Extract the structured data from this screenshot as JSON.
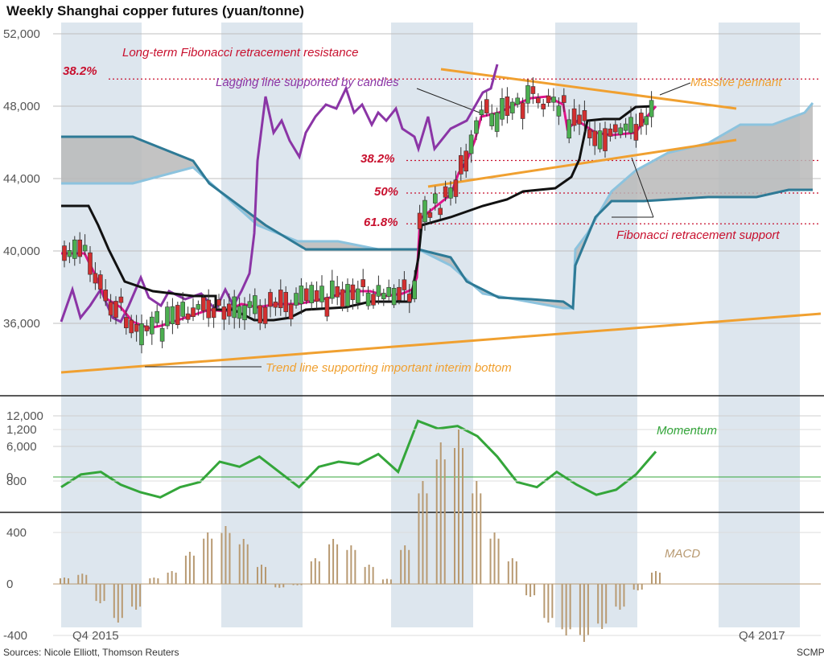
{
  "title": "Weekly Shanghai copper futures (yuan/tonne)",
  "source": "Sources: Nicole Elliott, Thomson Reuters",
  "brand": "SCMP",
  "x_labels": [
    "Q4 2015",
    "Q4 2017"
  ],
  "colors": {
    "lagging": "#8b35a6",
    "pink": "#e0148a",
    "black": "#111111",
    "teal": "#2e7a96",
    "lightblue": "#8cc3de",
    "cloud": "#b9b9b9",
    "orange": "#f0a030",
    "fib": "#c8102e",
    "momentum": "#34a63a",
    "macd": "#b89a72",
    "candle_up": "#4caf50",
    "candle_down": "#d32f2f",
    "band": "#dde6ee"
  },
  "chart_data": [
    {
      "type": "candlestick",
      "title": "Weekly Shanghai copper futures (yuan/tonne)",
      "ylim": [
        33000,
        52000
      ],
      "y_ticks": [
        52000,
        48000,
        44000,
        40000,
        36000
      ],
      "x_range": [
        "Q3 2015",
        "Q4 2017"
      ],
      "close_series": [
        [
          "2015-08",
          39500
        ],
        [
          "2015-09",
          38000
        ],
        [
          "2015-10",
          37000
        ],
        [
          "2015-11",
          35000
        ],
        [
          "2015-12",
          35800
        ],
        [
          "2016-01",
          35500
        ],
        [
          "2016-02",
          36500
        ],
        [
          "2016-03",
          37200
        ],
        [
          "2016-04",
          37000
        ],
        [
          "2016-05",
          36000
        ],
        [
          "2016-06",
          36000
        ],
        [
          "2016-07",
          37500
        ],
        [
          "2016-08",
          36800
        ],
        [
          "2016-09",
          36000
        ],
        [
          "2016-10",
          36500
        ],
        [
          "2016-11",
          38500
        ],
        [
          "2016-12",
          37000
        ],
        [
          "2017-01",
          46000
        ],
        [
          "2017-02",
          47000
        ],
        [
          "2017-03",
          46000
        ],
        [
          "2017-04",
          45500
        ],
        [
          "2017-05",
          46000
        ],
        [
          "2017-06",
          46500
        ],
        [
          "2017-07",
          48000
        ],
        [
          "2017-08",
          47500
        ],
        [
          "2017-09",
          46000
        ],
        [
          "2017-10",
          47000
        ],
        [
          "2017-11",
          49500
        ]
      ],
      "annotations": [
        {
          "text": "Long-term Fibonacci retracement resistance",
          "level_label": "38.2%",
          "value": 49500
        },
        {
          "text": "Fibonacci retracement support",
          "levels": [
            [
              "38.2%",
              45000
            ],
            [
              "50%",
              43200
            ],
            [
              "61.8%",
              41500
            ]
          ]
        },
        {
          "text": "Lagging line supported by candles"
        },
        {
          "text": "Massive pennant"
        },
        {
          "text": "Trend line supporting important interim bottom"
        }
      ],
      "lines": [
        "Lagging line",
        "Conversion line",
        "Base line",
        "Ichimoku cloud",
        "Pennant",
        "Trend line"
      ]
    },
    {
      "type": "line",
      "name": "Momentum",
      "ylim": [
        -5000,
        12000
      ],
      "y_ticks": [
        12000,
        6000,
        0
      ],
      "values": [
        -2000,
        500,
        1000,
        -1500,
        -3000,
        -4000,
        -2000,
        -1000,
        3000,
        2000,
        4000,
        1000,
        -2000,
        2000,
        3000,
        2500,
        4500,
        1000,
        11000,
        9500,
        10000,
        8000,
        4000,
        -1000,
        -2000,
        1000,
        -1500,
        -3500,
        -2500,
        500,
        5000
      ]
    },
    {
      "type": "bar",
      "name": "MACD",
      "ylim": [
        -550,
        1300
      ],
      "y_ticks": [
        1200,
        800,
        400,
        0,
        -400
      ],
      "values": [
        50,
        80,
        -150,
        -300,
        -200,
        50,
        100,
        250,
        400,
        450,
        350,
        150,
        -30,
        -10,
        200,
        350,
        300,
        150,
        40,
        300,
        800,
        1100,
        1200,
        800,
        400,
        200,
        -100,
        -300,
        -400,
        -450,
        -350,
        -200,
        -50,
        100
      ]
    }
  ]
}
